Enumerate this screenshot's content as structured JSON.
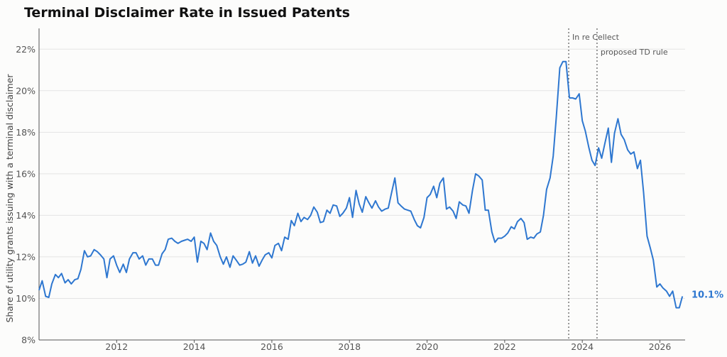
{
  "chart_data": {
    "type": "line",
    "title": "Terminal Disclaimer Rate in Issued Patents",
    "ylabel": "Share of utility grants issuing with a terminal disclaimer",
    "xlabel": "",
    "xlim": [
      2010.0,
      2026.65
    ],
    "ylim": [
      8,
      23
    ],
    "x_ticks": [
      2012,
      2014,
      2016,
      2018,
      2020,
      2022,
      2024,
      2026
    ],
    "x_tick_labels": [
      "2012",
      "2014",
      "2016",
      "2018",
      "2020",
      "2022",
      "2024",
      "2026"
    ],
    "y_ticks": [
      8,
      10,
      12,
      14,
      16,
      18,
      20,
      22
    ],
    "y_tick_labels": [
      "8%",
      "10%",
      "12%",
      "14%",
      "16%",
      "18%",
      "20%",
      "22%"
    ],
    "grid": "horizontal",
    "line_color": "#2e77d0",
    "series": [
      {
        "x": [
          2010.0,
          2010.08,
          2010.17,
          2010.25,
          2010.33,
          2010.42,
          2010.5,
          2010.58,
          2010.67,
          2010.75,
          2010.83,
          2010.92,
          2011.0,
          2011.08,
          2011.17,
          2011.25,
          2011.33,
          2011.42,
          2011.5,
          2011.58,
          2011.67,
          2011.75,
          2011.83,
          2011.92,
          2012.0,
          2012.08,
          2012.17,
          2012.25,
          2012.33,
          2012.42,
          2012.5,
          2012.58,
          2012.67,
          2012.75,
          2012.83,
          2012.92,
          2013.0,
          2013.08,
          2013.17,
          2013.25,
          2013.33,
          2013.42,
          2013.5,
          2013.58,
          2013.67,
          2013.75,
          2013.83,
          2013.92,
          2014.0,
          2014.08,
          2014.17,
          2014.25,
          2014.33,
          2014.42,
          2014.5,
          2014.58,
          2014.67,
          2014.75,
          2014.83,
          2014.92,
          2015.0,
          2015.08,
          2015.17,
          2015.25,
          2015.33,
          2015.42,
          2015.5,
          2015.58,
          2015.67,
          2015.75,
          2015.83,
          2015.92,
          2016.0,
          2016.08,
          2016.17,
          2016.25,
          2016.33,
          2016.42,
          2016.5,
          2016.58,
          2016.67,
          2016.75,
          2016.83,
          2016.92,
          2017.0,
          2017.08,
          2017.17,
          2017.25,
          2017.33,
          2017.42,
          2017.5,
          2017.58,
          2017.67,
          2017.75,
          2017.83,
          2017.92,
          2018.0,
          2018.08,
          2018.17,
          2018.25,
          2018.33,
          2018.42,
          2018.5,
          2018.58,
          2018.67,
          2018.75,
          2018.83,
          2018.92,
          2019.0,
          2019.08,
          2019.17,
          2019.25,
          2019.33,
          2019.42,
          2019.5,
          2019.58,
          2019.67,
          2019.75,
          2019.83,
          2019.92,
          2020.0,
          2020.08,
          2020.17,
          2020.25,
          2020.33,
          2020.42,
          2020.5,
          2020.58,
          2020.67,
          2020.75,
          2020.83,
          2020.92,
          2021.0,
          2021.08,
          2021.17,
          2021.25,
          2021.33,
          2021.42,
          2021.5,
          2021.58,
          2021.67,
          2021.75,
          2021.83,
          2021.92,
          2022.0,
          2022.08,
          2022.17,
          2022.25,
          2022.33,
          2022.42,
          2022.5,
          2022.58,
          2022.67,
          2022.75,
          2022.83,
          2022.92,
          2023.0,
          2023.08,
          2023.17,
          2023.25,
          2023.33,
          2023.42,
          2023.5,
          2023.58,
          2023.67,
          2023.75,
          2023.83,
          2023.92,
          2024.0,
          2024.08,
          2024.17,
          2024.25,
          2024.33,
          2024.42,
          2024.5,
          2024.58,
          2024.67,
          2024.75,
          2024.83,
          2024.92,
          2025.0,
          2025.08,
          2025.17,
          2025.25,
          2025.33,
          2025.42,
          2025.5,
          2025.58,
          2025.67,
          2025.75,
          2025.83,
          2025.92,
          2026.0,
          2026.08,
          2026.17,
          2026.25,
          2026.33,
          2026.42,
          2026.5,
          2026.58
        ],
        "y": [
          10.4,
          10.85,
          10.1,
          10.05,
          10.7,
          11.15,
          11.0,
          11.2,
          10.75,
          10.9,
          10.7,
          10.9,
          10.95,
          11.4,
          12.3,
          12.0,
          12.05,
          12.35,
          12.25,
          12.1,
          11.9,
          11.0,
          11.9,
          12.05,
          11.6,
          11.25,
          11.65,
          11.25,
          11.9,
          12.2,
          12.2,
          11.9,
          12.05,
          11.6,
          11.9,
          11.9,
          11.6,
          11.6,
          12.15,
          12.35,
          12.85,
          12.9,
          12.75,
          12.65,
          12.75,
          12.8,
          12.85,
          12.75,
          12.95,
          11.75,
          12.75,
          12.65,
          12.35,
          13.15,
          12.75,
          12.55,
          12.0,
          11.65,
          12.0,
          11.5,
          12.05,
          11.85,
          11.6,
          11.65,
          11.75,
          12.25,
          11.7,
          12.05,
          11.55,
          11.85,
          12.1,
          12.2,
          11.95,
          12.55,
          12.65,
          12.3,
          12.95,
          12.85,
          13.75,
          13.5,
          14.1,
          13.7,
          13.9,
          13.8,
          14.0,
          14.4,
          14.15,
          13.65,
          13.7,
          14.25,
          14.1,
          14.5,
          14.45,
          13.95,
          14.1,
          14.35,
          14.85,
          13.9,
          15.2,
          14.55,
          14.15,
          14.9,
          14.6,
          14.35,
          14.7,
          14.4,
          14.2,
          14.3,
          14.35,
          15.05,
          15.8,
          14.6,
          14.45,
          14.3,
          14.25,
          14.2,
          13.8,
          13.5,
          13.4,
          13.9,
          14.85,
          15.0,
          15.4,
          14.85,
          15.55,
          15.8,
          14.3,
          14.4,
          14.2,
          13.85,
          14.65,
          14.5,
          14.45,
          14.1,
          15.2,
          16.0,
          15.9,
          15.7,
          14.25,
          14.25,
          13.2,
          12.7,
          12.9,
          12.9,
          13.0,
          13.15,
          13.45,
          13.35,
          13.7,
          13.85,
          13.65,
          12.85,
          12.95,
          12.9,
          13.1,
          13.2,
          14.0,
          15.25,
          15.8,
          16.85,
          18.7,
          21.1,
          21.4,
          21.4,
          19.65,
          19.65,
          19.6,
          19.85,
          18.55,
          18.05,
          17.25,
          16.65,
          16.4,
          17.25,
          16.75,
          17.45,
          18.2,
          16.55,
          17.95,
          18.65,
          17.9,
          17.65,
          17.15,
          16.95,
          17.05,
          16.25,
          16.65,
          15.1,
          13.0,
          12.45,
          11.85,
          10.55,
          10.7,
          10.5,
          10.35,
          10.1,
          10.35,
          9.55,
          9.55,
          10.1
        ]
      }
    ],
    "events": [
      {
        "x": 2023.65,
        "label": "In re Cellect"
      },
      {
        "x": 2024.38,
        "label": "proposed TD rule"
      }
    ],
    "end_label": "10.1%"
  }
}
